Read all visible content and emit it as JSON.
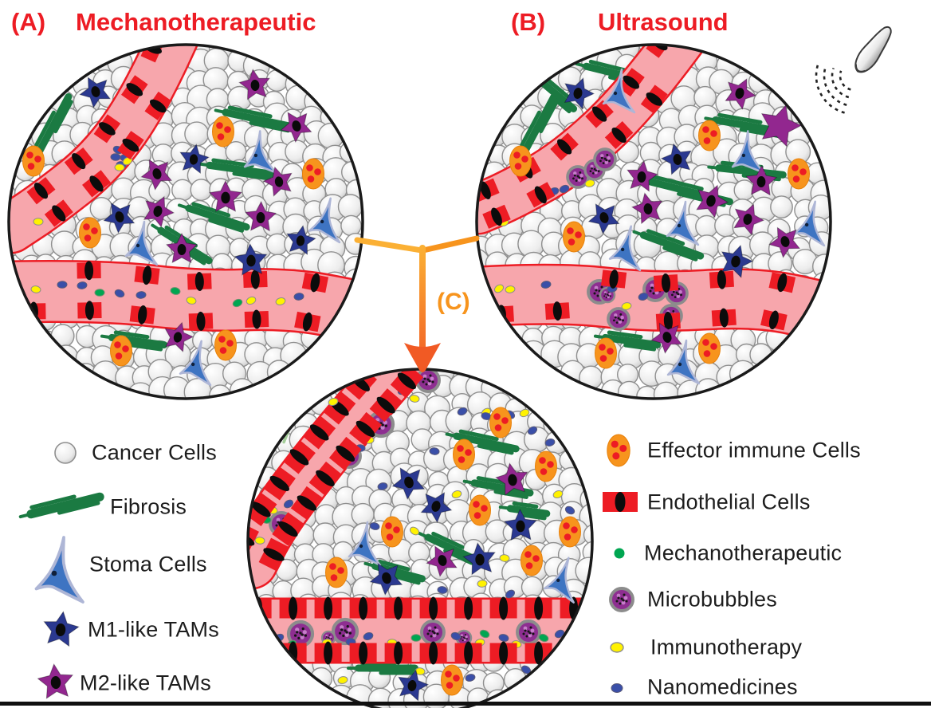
{
  "figure": {
    "panel_a_label": "(A)",
    "panel_a_title": "Mechanotherapeutic",
    "panel_b_label": "(B)",
    "panel_b_title": "Ultrasound",
    "panel_c_label": "(C)"
  },
  "legend_left": [
    {
      "label": "Cancer Cells",
      "icon": "cancer-cell-icon"
    },
    {
      "label": "Fibrosis",
      "icon": "fibrosis-icon"
    },
    {
      "label": "Stoma Cells",
      "icon": "stoma-cell-icon"
    },
    {
      "label": "M1-like TAMs",
      "icon": "m1-tam-icon"
    },
    {
      "label": "M2-like TAMs",
      "icon": "m2-tam-icon"
    }
  ],
  "legend_right": [
    {
      "label": "Effector immune Cells",
      "icon": "effector-immune-cell-icon"
    },
    {
      "label": "Endothelial Cells",
      "icon": "endothelial-cell-icon"
    },
    {
      "label": "Mechanotherapeutic",
      "icon": "mechanotherapeutic-icon"
    },
    {
      "label": "Microbubbles",
      "icon": "microbubble-icon"
    },
    {
      "label": "Immunotherapy",
      "icon": "immunotherapy-icon"
    },
    {
      "label": "Nanomedicines",
      "icon": "nanomedicine-icon"
    }
  ],
  "colors": {
    "title_red": "#ED1C24",
    "arrow_orange": "#F7941D",
    "arrow_yellow": "#FBB034",
    "arrow_deep": "#F15A24",
    "cancer_cell_stroke": "#8F8F8F",
    "vessel_pink": "#F7A6AC",
    "vessel_outline_red": "#ED1C24",
    "endothelial_red": "#ED1C24",
    "fibrosis_green": "#1B7A42",
    "fibrosis_light_green": "#A5CE9A",
    "m1_blue": "#2B3990",
    "m2_purple": "#92278F",
    "immune_orange": "#F7941D",
    "immune_dot_red": "#ED1C24",
    "stoma_blue": "#3E74C2",
    "stoma_edge": "#AEB6D6",
    "microbubble_purple": "#8E2E91",
    "microbubble_ring_gray": "#8C8C8C",
    "immunotherapy_yellow": "#FFF200",
    "nanomedicine_blue": "#3A4FA8",
    "mechano_green": "#00A651"
  }
}
